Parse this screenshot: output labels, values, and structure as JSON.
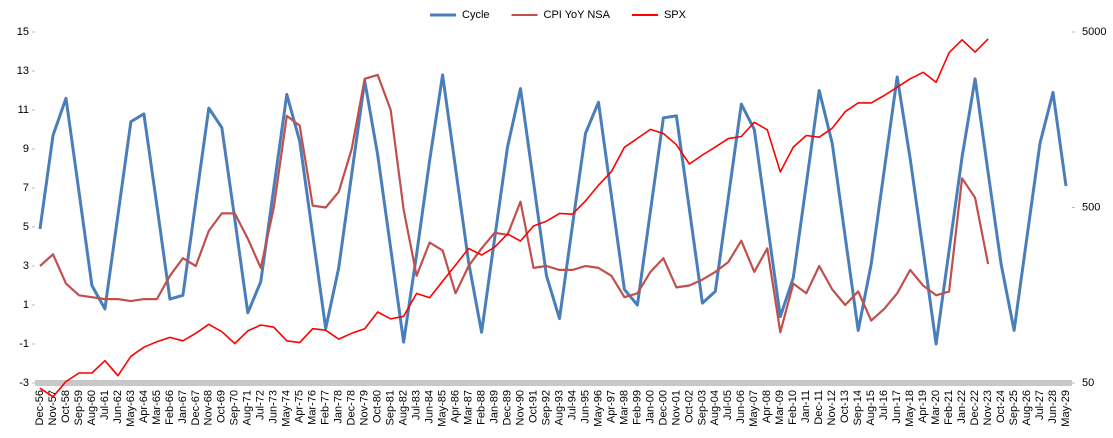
{
  "chart_data": {
    "type": "line",
    "categories": [
      "Dec-56",
      "Nov-57",
      "Oct-58",
      "Sep-59",
      "Aug-60",
      "Jul-61",
      "Jun-62",
      "May-63",
      "Apr-64",
      "Mar-65",
      "Feb-66",
      "Jan-67",
      "Dec-67",
      "Nov-68",
      "Oct-69",
      "Sep-70",
      "Aug-71",
      "Jul-72",
      "Jun-73",
      "May-74",
      "Apr-75",
      "Mar-76",
      "Feb-77",
      "Jan-78",
      "Dec-78",
      "Nov-79",
      "Oct-80",
      "Sep-81",
      "Aug-82",
      "Jul-83",
      "Jun-84",
      "May-85",
      "Apr-86",
      "Mar-87",
      "Feb-88",
      "Jan-89",
      "Dec-89",
      "Nov-90",
      "Oct-91",
      "Sep-92",
      "Aug-93",
      "Jul-94",
      "Jun-95",
      "May-96",
      "Apr-97",
      "Mar-98",
      "Feb-99",
      "Jan-00",
      "Dec-00",
      "Nov-01",
      "Oct-02",
      "Sep-03",
      "Aug-04",
      "Jul-05",
      "Jun-06",
      "May-07",
      "Apr-08",
      "Mar-09",
      "Feb-10",
      "Jan-11",
      "Dec-11",
      "Nov-12",
      "Oct-13",
      "Sep-14",
      "Aug-15",
      "Jul-16",
      "Jun-17",
      "May-18",
      "Apr-19",
      "Mar-20",
      "Feb-21",
      "Jan-22",
      "Dec-22",
      "Nov-23",
      "Oct-24",
      "Sep-25",
      "Aug-26",
      "Jul-27",
      "Jun-28",
      "May-29"
    ],
    "series": [
      {
        "name": "Cycle",
        "color": "#4a7ebb",
        "values": [
          4.9,
          9.7,
          11.6,
          6.8,
          2.0,
          0.8,
          5.6,
          10.4,
          10.8,
          6.1,
          1.3,
          1.5,
          6.3,
          11.1,
          10.1,
          5.4,
          0.6,
          2.2,
          7.0,
          11.8,
          9.4,
          4.6,
          -0.2,
          2.9,
          7.7,
          12.5,
          8.7,
          3.9,
          -0.9,
          3.6,
          8.4,
          12.8,
          8.0,
          3.2,
          -0.4,
          4.4,
          9.1,
          12.1,
          7.3,
          2.5,
          0.3,
          5.1,
          9.8,
          11.4,
          6.6,
          1.8,
          1.0,
          5.8,
          10.6,
          10.7,
          5.9,
          1.1,
          1.7,
          6.5,
          11.3,
          10.0,
          5.2,
          0.4,
          2.4,
          7.2,
          12.0,
          9.3,
          4.5,
          -0.3,
          3.1,
          7.9,
          12.7,
          8.5,
          3.8,
          -1.0,
          3.8,
          8.6,
          12.6,
          7.8,
          3.1,
          -0.3,
          4.5,
          9.3,
          11.9,
          7.1
        ]
      },
      {
        "name": "CPI YoY NSA",
        "color": "#c0504d",
        "values": [
          3.0,
          3.6,
          2.1,
          1.5,
          1.4,
          1.3,
          1.3,
          1.2,
          1.3,
          1.3,
          2.5,
          3.4,
          3.0,
          4.8,
          5.7,
          5.7,
          4.4,
          2.9,
          6.0,
          10.7,
          10.2,
          6.1,
          6.0,
          6.8,
          9.0,
          12.6,
          12.8,
          11.0,
          5.9,
          2.5,
          4.2,
          3.8,
          1.6,
          3.0,
          3.9,
          4.7,
          4.6,
          6.3,
          2.9,
          3.0,
          2.8,
          2.8,
          3.0,
          2.9,
          2.5,
          1.4,
          1.6,
          2.7,
          3.4,
          1.9,
          2.0,
          2.3,
          2.7,
          3.2,
          4.3,
          2.7,
          3.9,
          -0.4,
          2.1,
          1.6,
          3.0,
          1.8,
          1.0,
          1.7,
          0.2,
          0.8,
          1.6,
          2.8,
          2.0,
          1.5,
          1.7,
          7.5,
          6.5,
          3.1,
          null,
          null,
          null,
          null,
          null,
          null
        ]
      },
      {
        "name": "SPX",
        "color": "#ff0000",
        "axis": "y2",
        "values": [
          46.7,
          41.7,
          51,
          57,
          57,
          67,
          55,
          71,
          80,
          86,
          91,
          87,
          96,
          108,
          98,
          84,
          99,
          107,
          104,
          87,
          85,
          102,
          100,
          89,
          96,
          102,
          127,
          116,
          120,
          162,
          153,
          190,
          235,
          292,
          268,
          297,
          353,
          322,
          392,
          418,
          463,
          458,
          545,
          670,
          801,
          1102,
          1238,
          1394,
          1320,
          1139,
          885,
          996,
          1104,
          1234,
          1270,
          1530,
          1385,
          798,
          1104,
          1286,
          1258,
          1416,
          1757,
          1972,
          1972,
          2174,
          2423,
          2705,
          2946,
          2585,
          3811,
          4516,
          3840,
          4568,
          null,
          null,
          null,
          null,
          null,
          null
        ]
      }
    ],
    "ylim": [
      -3,
      15
    ],
    "yticks": [
      -3,
      -1,
      1,
      3,
      5,
      7,
      9,
      11,
      13,
      15
    ],
    "y2lim": [
      50,
      5000
    ],
    "y2ticks": [
      50,
      500,
      5000
    ],
    "y2log": true,
    "grid": false,
    "legend": "top"
  }
}
